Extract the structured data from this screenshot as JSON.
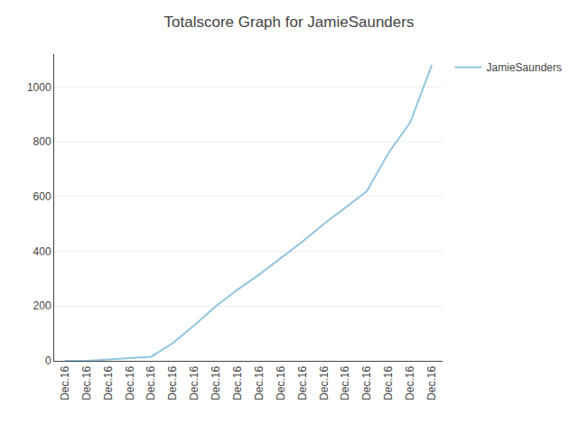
{
  "chart_data": {
    "type": "line",
    "title": "Totalscore Graph for JamieSaunders",
    "categories": [
      "Dec.16",
      "Dec.16",
      "Dec.16",
      "Dec.16",
      "Dec.16",
      "Dec.16",
      "Dec.16",
      "Dec.16",
      "Dec.16",
      "Dec.16",
      "Dec.16",
      "Dec.16",
      "Dec.16",
      "Dec.16",
      "Dec.16",
      "Dec.16",
      "Dec.16",
      "Dec.16"
    ],
    "series": [
      {
        "name": "JamieSaunders",
        "color": "#92C5DE",
        "values": [
          0,
          0,
          5,
          10,
          15,
          65,
          130,
          200,
          260,
          315,
          375,
          435,
          500,
          560,
          620,
          760,
          870,
          1080
        ]
      }
    ],
    "ylim": [
      0,
      1120
    ],
    "yticks": [
      0,
      200,
      400,
      600,
      800,
      1000
    ],
    "grid": true,
    "legend": "upper right"
  }
}
